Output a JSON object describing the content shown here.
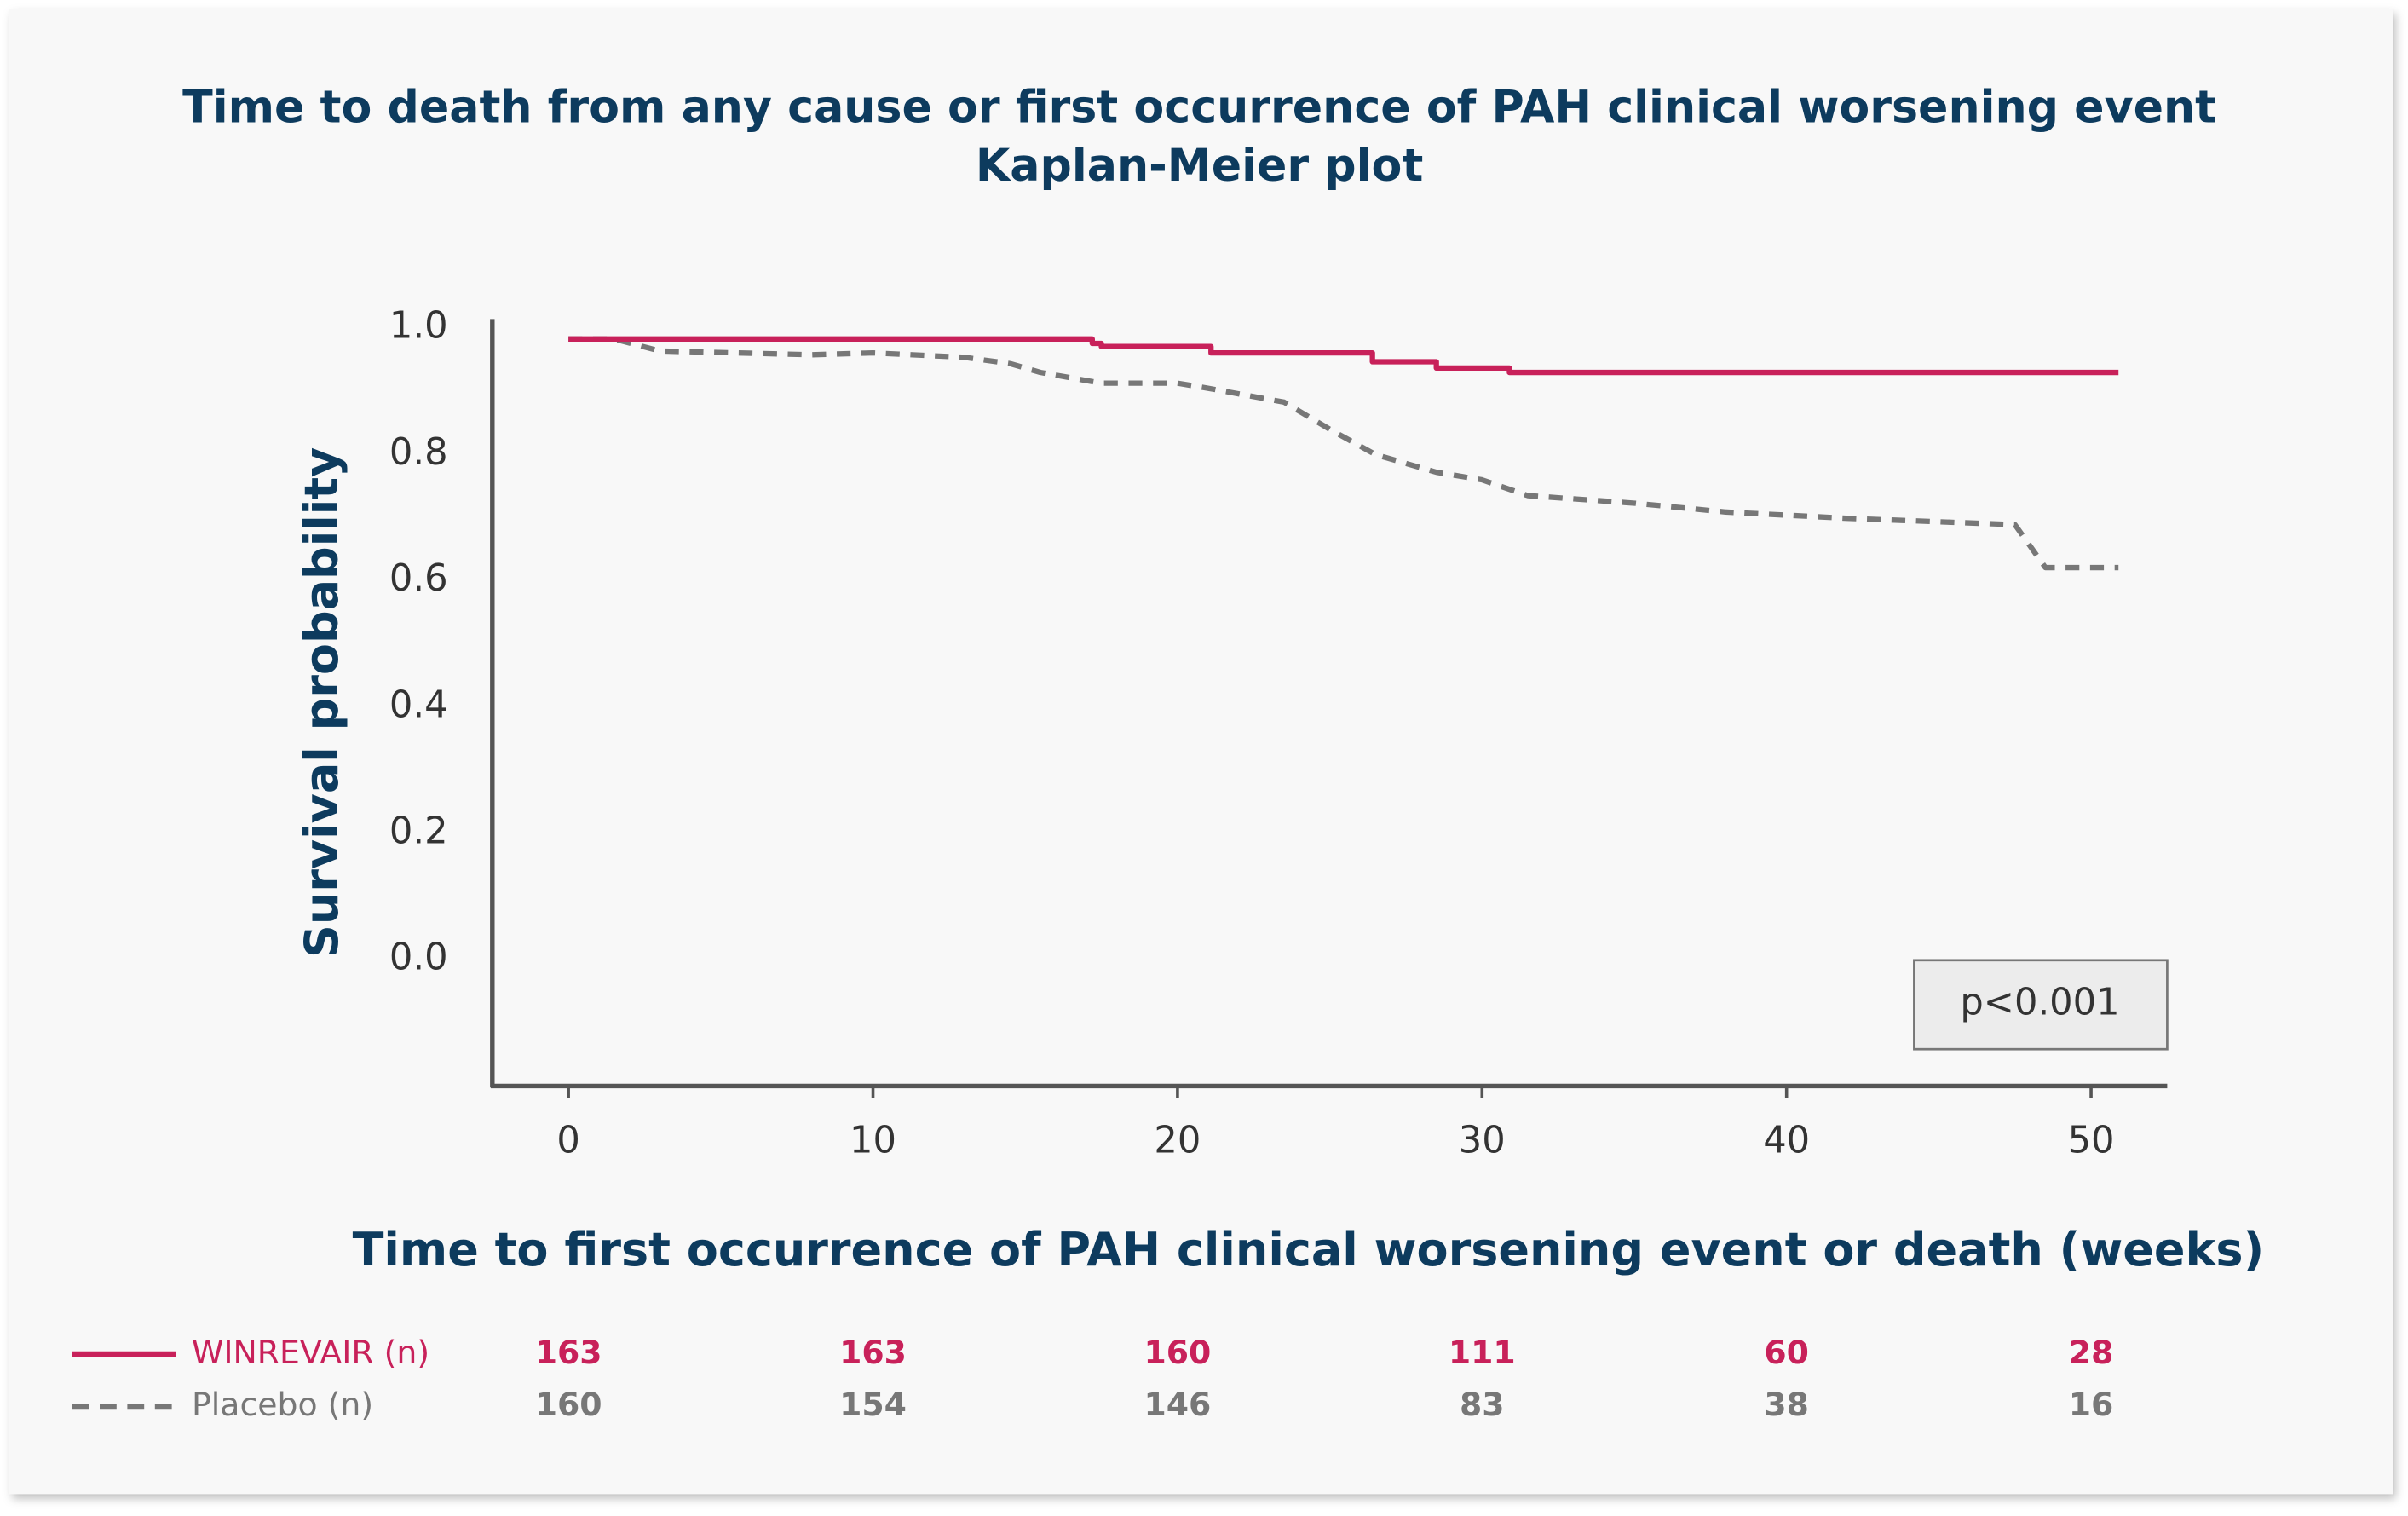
{
  "chart_data": {
    "type": "line",
    "title": "Time to death from any cause or first occurrence of PAH clinical worsening event",
    "subtitle": "Kaplan-Meier plot",
    "x_label": "Time to first occurrence of PAH clinical worsening event or death (weeks)",
    "y_label": "Survival probability",
    "annotation": "p<0.001",
    "xlim": [
      -2.5,
      52.5
    ],
    "ylim": [
      -0.2,
      1.0
    ],
    "xticks": [
      0,
      10,
      20,
      30,
      40,
      50
    ],
    "yticks": [
      {
        "value": 0,
        "label": "0.0"
      },
      0.2,
      0.4,
      0.6,
      0.8,
      {
        "value": 1,
        "label": "1.0"
      }
    ],
    "grid": false,
    "series": [
      {
        "name": "WINREVAIR (n)",
        "color": "#c8215a",
        "line_style": "solid",
        "x": [
          0,
          17.2,
          17.2,
          17.5,
          17.5,
          21.1,
          21.1,
          26.4,
          26.4,
          28.5,
          28.5,
          30.9,
          30.9,
          50.9
        ],
        "values": [
          0.983,
          0.983,
          0.976,
          0.976,
          0.971,
          0.971,
          0.961,
          0.961,
          0.947,
          0.947,
          0.937,
          0.937,
          0.93,
          0.93
        ],
        "at_risk": [
          163,
          163,
          160,
          111,
          60,
          28
        ]
      },
      {
        "name": "Placebo (n)",
        "color": "#777777",
        "line_style": "dashed",
        "x": [
          0,
          1.5,
          3,
          8,
          10,
          13,
          14.5,
          15.5,
          17.5,
          20,
          21,
          23.5,
          25,
          26.5,
          28.5,
          30,
          31.5,
          35,
          38,
          42,
          47.5,
          48.5,
          50.9
        ],
        "values": [
          0.983,
          0.983,
          0.964,
          0.958,
          0.961,
          0.954,
          0.944,
          0.93,
          0.913,
          0.913,
          0.905,
          0.883,
          0.84,
          0.8,
          0.772,
          0.76,
          0.735,
          0.723,
          0.709,
          0.699,
          0.689,
          0.621,
          0.621
        ],
        "at_risk": [
          160,
          154,
          146,
          83,
          38,
          16
        ]
      }
    ]
  }
}
